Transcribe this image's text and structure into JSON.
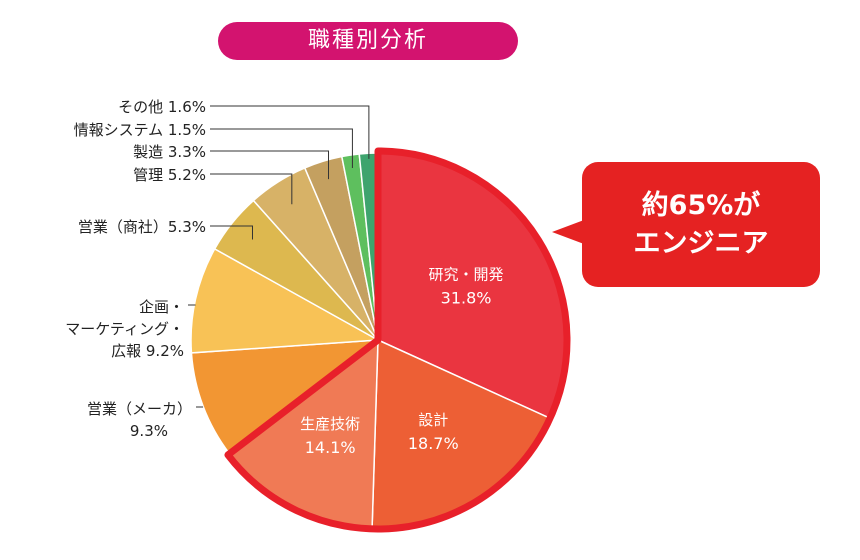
{
  "chart_data": {
    "type": "pie",
    "title": "職種別分析",
    "slices": [
      {
        "label": "研究・開発",
        "value": 31.8,
        "color": "#ea3540",
        "label_pos": "inside",
        "text_color": "#ffffff"
      },
      {
        "label": "設計",
        "value": 18.7,
        "color": "#ed5f35",
        "label_pos": "inside",
        "text_color": "#ffffff"
      },
      {
        "label": "生産技術",
        "value": 14.1,
        "color": "#f07a55",
        "label_pos": "inside",
        "text_color": "#ffffff"
      },
      {
        "label": "営業（メーカ）",
        "value": 9.3,
        "color": "#f29633",
        "label_pos": "outside"
      },
      {
        "label": "企画・マーケティング・広報",
        "value": 9.2,
        "color": "#f8c256",
        "label_pos": "outside"
      },
      {
        "label": "営業（商社）",
        "value": 5.3,
        "color": "#ddb84f",
        "label_pos": "outside"
      },
      {
        "label": "管理",
        "value": 5.2,
        "color": "#d7b267",
        "label_pos": "outside"
      },
      {
        "label": "製造",
        "value": 3.3,
        "color": "#c4a060",
        "label_pos": "outside"
      },
      {
        "label": "情報システム",
        "value": 1.5,
        "color": "#5ebf5e",
        "label_pos": "outside"
      },
      {
        "label": "その他",
        "value": 1.6,
        "color": "#3ea46e",
        "label_pos": "outside"
      }
    ],
    "highlight": {
      "slices": [
        "研究・開発",
        "設計",
        "生産技術"
      ],
      "text_lines": [
        "約65%が",
        "エンジニア"
      ]
    },
    "label_lines": {
      "営業（メーカ）": [
        "営業（メーカ）",
        "9.3%"
      ],
      "企画・マーケティング・広報": [
        "企画・",
        "マーケティング・",
        "広報 9.2%"
      ],
      "営業（商社）": [
        "営業（商社）5.3%"
      ],
      "管理": [
        "管理 5.2%"
      ],
      "製造": [
        "製造 3.3%"
      ],
      "情報システム": [
        "情報システム 1.5%"
      ],
      "その他": [
        "その他 1.6%"
      ]
    }
  }
}
